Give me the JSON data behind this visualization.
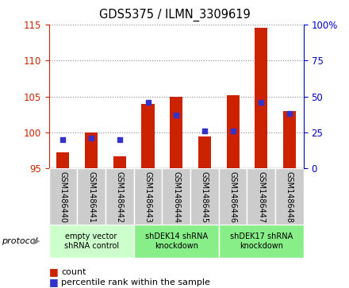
{
  "title": "GDS5375 / ILMN_3309619",
  "samples": [
    "GSM1486440",
    "GSM1486441",
    "GSM1486442",
    "GSM1486443",
    "GSM1486444",
    "GSM1486445",
    "GSM1486446",
    "GSM1486447",
    "GSM1486448"
  ],
  "count_values": [
    97.2,
    100.0,
    96.7,
    104.0,
    105.0,
    99.5,
    105.2,
    114.5,
    103.0
  ],
  "percentile_values": [
    20,
    21,
    20,
    46,
    37,
    26,
    26,
    46,
    38
  ],
  "count_base": 95,
  "left_ylim": [
    95,
    115
  ],
  "left_yticks": [
    95,
    100,
    105,
    110,
    115
  ],
  "right_ylim": [
    0,
    100
  ],
  "right_yticks": [
    0,
    25,
    50,
    75,
    100
  ],
  "right_yticklabels": [
    "0",
    "25",
    "50",
    "75",
    "100%"
  ],
  "bar_color": "#cc2200",
  "dot_color": "#3333cc",
  "group_colors": [
    "#ccffcc",
    "#88ee88",
    "#88ee88"
  ],
  "group_labels": [
    "empty vector\nshRNA control",
    "shDEK14 shRNA\nknockdown",
    "shDEK17 shRNA\nknockdown"
  ],
  "group_ranges": [
    [
      0,
      3
    ],
    [
      3,
      6
    ],
    [
      6,
      9
    ]
  ],
  "protocol_label": "protocol",
  "left_axis_color": "#cc2200",
  "right_axis_color": "#0000cc",
  "grid_color": "#888888",
  "tick_bg_color": "#cccccc"
}
